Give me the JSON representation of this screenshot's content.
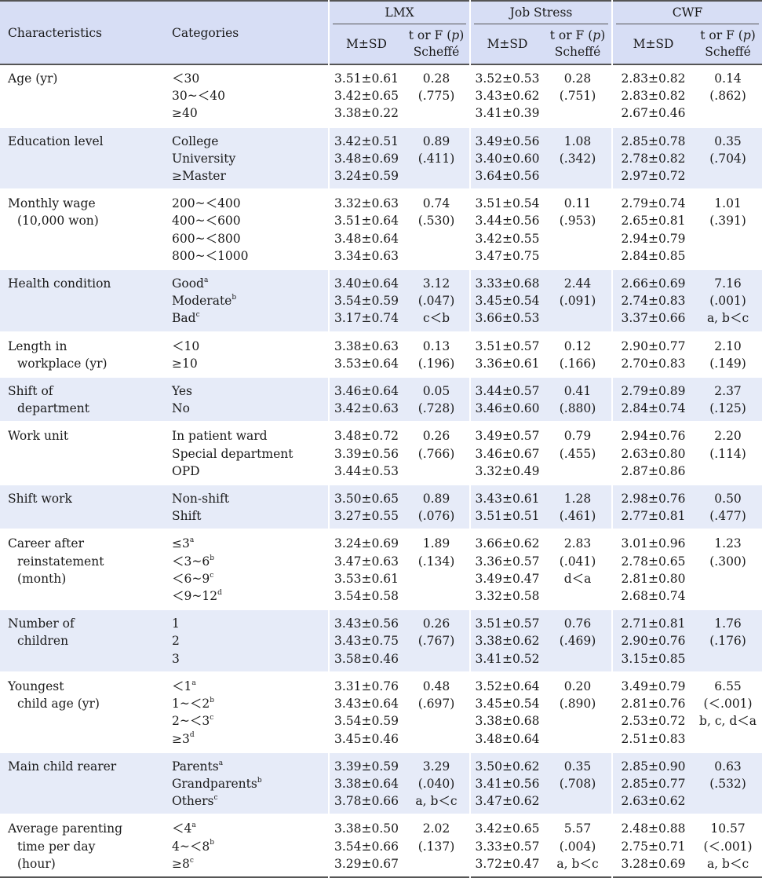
{
  "headers": {
    "characteristics": "Characteristics",
    "categories": "Categories",
    "groups": [
      "LMX",
      "Job Stress",
      "CWF"
    ],
    "msd": "M±SD",
    "test_line1_a": "t or F (",
    "test_p": "p",
    "test_line1_b": ")",
    "test_line2": "Scheffé"
  },
  "rows": [
    {
      "char": [
        "Age (yr)"
      ],
      "cats": [
        {
          "t": "＜30"
        },
        {
          "t": "30~＜40"
        },
        {
          "t": "≥40"
        }
      ],
      "lmx_msd": [
        "3.51±0.61",
        "3.42±0.65",
        "3.38±0.22"
      ],
      "lmx_t": [
        "0.28",
        "(.775)"
      ],
      "js_msd": [
        "3.52±0.53",
        "3.43±0.62",
        "3.41±0.39"
      ],
      "js_t": [
        "0.28",
        "(.751)"
      ],
      "cwf_msd": [
        "2.83±0.82",
        "2.83±0.82",
        "2.67±0.46"
      ],
      "cwf_t": [
        "0.14",
        "(.862)"
      ]
    },
    {
      "char": [
        "Education level"
      ],
      "cats": [
        {
          "t": "College"
        },
        {
          "t": "University"
        },
        {
          "t": "≥Master"
        }
      ],
      "lmx_msd": [
        "3.42±0.51",
        "3.48±0.69",
        "3.24±0.59"
      ],
      "lmx_t": [
        "0.89",
        "(.411)"
      ],
      "js_msd": [
        "3.49±0.56",
        "3.40±0.60",
        "3.64±0.56"
      ],
      "js_t": [
        "1.08",
        "(.342)"
      ],
      "cwf_msd": [
        "2.85±0.78",
        "2.78±0.82",
        "2.97±0.72"
      ],
      "cwf_t": [
        "0.35",
        "(.704)"
      ]
    },
    {
      "char": [
        "Monthly wage",
        "(10,000 won)"
      ],
      "cats": [
        {
          "t": "200~＜400"
        },
        {
          "t": "400~＜600"
        },
        {
          "t": "600~＜800"
        },
        {
          "t": "800~＜1000"
        }
      ],
      "lmx_msd": [
        "3.32±0.63",
        "3.51±0.64",
        "3.48±0.64",
        "3.34±0.63"
      ],
      "lmx_t": [
        "0.74",
        "(.530)"
      ],
      "js_msd": [
        "3.51±0.54",
        "3.44±0.56",
        "3.42±0.55",
        "3.47±0.75"
      ],
      "js_t": [
        "0.11",
        "(.953)"
      ],
      "cwf_msd": [
        "2.79±0.74",
        "2.65±0.81",
        "2.94±0.79",
        "2.84±0.85"
      ],
      "cwf_t": [
        "1.01",
        "(.391)"
      ]
    },
    {
      "char": [
        "Health condition"
      ],
      "cats": [
        {
          "t": "Good",
          "s": "a"
        },
        {
          "t": "Moderate",
          "s": "b"
        },
        {
          "t": "Bad",
          "s": "c"
        }
      ],
      "lmx_msd": [
        "3.40±0.64",
        "3.54±0.59",
        "3.17±0.74"
      ],
      "lmx_t": [
        "3.12",
        "(.047)",
        "c＜b"
      ],
      "js_msd": [
        "3.33±0.68",
        "3.45±0.54",
        "3.66±0.53"
      ],
      "js_t": [
        "2.44",
        "(.091)"
      ],
      "cwf_msd": [
        "2.66±0.69",
        "2.74±0.83",
        "3.37±0.66"
      ],
      "cwf_t": [
        "7.16",
        "(.001)",
        "a, b＜c"
      ]
    },
    {
      "char": [
        "Length in",
        "workplace (yr)"
      ],
      "cats": [
        {
          "t": "＜10"
        },
        {
          "t": "≥10"
        }
      ],
      "lmx_msd": [
        "3.38±0.63",
        "3.53±0.64"
      ],
      "lmx_t": [
        "0.13",
        "(.196)"
      ],
      "js_msd": [
        "3.51±0.57",
        "3.36±0.61"
      ],
      "js_t": [
        "0.12",
        "(.166)"
      ],
      "cwf_msd": [
        "2.90±0.77",
        "2.70±0.83"
      ],
      "cwf_t": [
        "2.10",
        "(.149)"
      ]
    },
    {
      "char": [
        "Shift of",
        "department"
      ],
      "cats": [
        {
          "t": "Yes"
        },
        {
          "t": "No"
        }
      ],
      "lmx_msd": [
        "3.46±0.64",
        "3.42±0.63"
      ],
      "lmx_t": [
        "0.05",
        "(.728)"
      ],
      "js_msd": [
        "3.44±0.57",
        "3.46±0.60"
      ],
      "js_t": [
        "0.41",
        "(.880)"
      ],
      "cwf_msd": [
        "2.79±0.89",
        "2.84±0.74"
      ],
      "cwf_t": [
        "2.37",
        "(.125)"
      ]
    },
    {
      "char": [
        "Work unit"
      ],
      "cats": [
        {
          "t": "In patient ward"
        },
        {
          "t": "Special department"
        },
        {
          "t": "OPD"
        }
      ],
      "lmx_msd": [
        "3.48±0.72",
        "3.39±0.56",
        "3.44±0.53"
      ],
      "lmx_t": [
        "0.26",
        "(.766)"
      ],
      "js_msd": [
        "3.49±0.57",
        "3.46±0.67",
        "3.32±0.49"
      ],
      "js_t": [
        "0.79",
        "(.455)"
      ],
      "cwf_msd": [
        "2.94±0.76",
        "2.63±0.80",
        "2.87±0.86"
      ],
      "cwf_t": [
        "2.20",
        "(.114)"
      ]
    },
    {
      "char": [
        "Shift work"
      ],
      "cats": [
        {
          "t": "Non-shift"
        },
        {
          "t": "Shift"
        }
      ],
      "lmx_msd": [
        "3.50±0.65",
        "3.27±0.55"
      ],
      "lmx_t": [
        "0.89",
        "(.076)"
      ],
      "js_msd": [
        "3.43±0.61",
        "3.51±0.51"
      ],
      "js_t": [
        "1.28",
        "(.461)"
      ],
      "cwf_msd": [
        "2.98±0.76",
        "2.77±0.81"
      ],
      "cwf_t": [
        "0.50",
        "(.477)"
      ]
    },
    {
      "char": [
        "Career after",
        "reinstatement",
        "(month)"
      ],
      "cats": [
        {
          "t": "≤3",
          "s": "a"
        },
        {
          "t": "＜3~6",
          "s": "b"
        },
        {
          "t": "＜6~9",
          "s": "c"
        },
        {
          "t": "＜9~12",
          "s": "d"
        }
      ],
      "lmx_msd": [
        "3.24±0.69",
        "3.47±0.63",
        "3.53±0.61",
        "3.54±0.58"
      ],
      "lmx_t": [
        "1.89",
        "(.134)"
      ],
      "js_msd": [
        "3.66±0.62",
        "3.36±0.57",
        "3.49±0.47",
        "3.32±0.58"
      ],
      "js_t": [
        "2.83",
        "(.041)",
        "d＜a"
      ],
      "cwf_msd": [
        "3.01±0.96",
        "2.78±0.65",
        "2.81±0.80",
        "2.68±0.74"
      ],
      "cwf_t": [
        "1.23",
        "(.300)"
      ]
    },
    {
      "char": [
        "Number of",
        "children"
      ],
      "cats": [
        {
          "t": "1"
        },
        {
          "t": "2"
        },
        {
          "t": "3"
        }
      ],
      "lmx_msd": [
        "3.43±0.56",
        "3.43±0.75",
        "3.58±0.46"
      ],
      "lmx_t": [
        "0.26",
        "(.767)"
      ],
      "js_msd": [
        "3.51±0.57",
        "3.38±0.62",
        "3.41±0.52"
      ],
      "js_t": [
        "0.76",
        "(.469)"
      ],
      "cwf_msd": [
        "2.71±0.81",
        "2.90±0.76",
        "3.15±0.85"
      ],
      "cwf_t": [
        "1.76",
        "(.176)"
      ]
    },
    {
      "char": [
        "Youngest",
        "child age (yr)"
      ],
      "cats": [
        {
          "t": "＜1",
          "s": "a"
        },
        {
          "t": "1~＜2",
          "s": "b"
        },
        {
          "t": "2~＜3",
          "s": "c"
        },
        {
          "t": "≥3",
          "s": "d"
        }
      ],
      "lmx_msd": [
        "3.31±0.76",
        "3.43±0.64",
        "3.54±0.59",
        "3.45±0.46"
      ],
      "lmx_t": [
        "0.48",
        "(.697)"
      ],
      "js_msd": [
        "3.52±0.64",
        "3.45±0.54",
        "3.38±0.68",
        "3.48±0.64"
      ],
      "js_t": [
        "0.20",
        "(.890)"
      ],
      "cwf_msd": [
        "3.49±0.79",
        "2.81±0.76",
        "2.53±0.72",
        "2.51±0.83"
      ],
      "cwf_t": [
        "6.55",
        "(＜.001)",
        "b, c, d＜a"
      ]
    },
    {
      "char": [
        "Main child rearer"
      ],
      "cats": [
        {
          "t": "Parents",
          "s": "a"
        },
        {
          "t": "Grandparents",
          "s": "b"
        },
        {
          "t": "Others",
          "s": "c"
        }
      ],
      "lmx_msd": [
        "3.39±0.59",
        "3.38±0.64",
        "3.78±0.66"
      ],
      "lmx_t": [
        "3.29",
        "(.040)",
        "a, b＜c"
      ],
      "js_msd": [
        "3.50±0.62",
        "3.41±0.56",
        "3.47±0.62"
      ],
      "js_t": [
        "0.35",
        "(.708)"
      ],
      "cwf_msd": [
        "2.85±0.90",
        "2.85±0.77",
        "2.63±0.62"
      ],
      "cwf_t": [
        "0.63",
        "(.532)"
      ]
    },
    {
      "char": [
        "Average parenting",
        "time per day",
        "(hour)"
      ],
      "cats": [
        {
          "t": "＜4",
          "s": "a"
        },
        {
          "t": "4~＜8",
          "s": "b"
        },
        {
          "t": "≥8",
          "s": "c"
        }
      ],
      "lmx_msd": [
        "3.38±0.50",
        "3.54±0.66",
        "3.29±0.67"
      ],
      "lmx_t": [
        "2.02",
        "(.137)"
      ],
      "js_msd": [
        "3.42±0.65",
        "3.33±0.57",
        "3.72±0.47"
      ],
      "js_t": [
        "5.57",
        "(.004)",
        "a, b＜c"
      ],
      "cwf_msd": [
        "2.48±0.88",
        "2.75±0.71",
        "3.28±0.69"
      ],
      "cwf_t": [
        "10.57",
        "(＜.001)",
        "a, b＜c"
      ]
    }
  ]
}
